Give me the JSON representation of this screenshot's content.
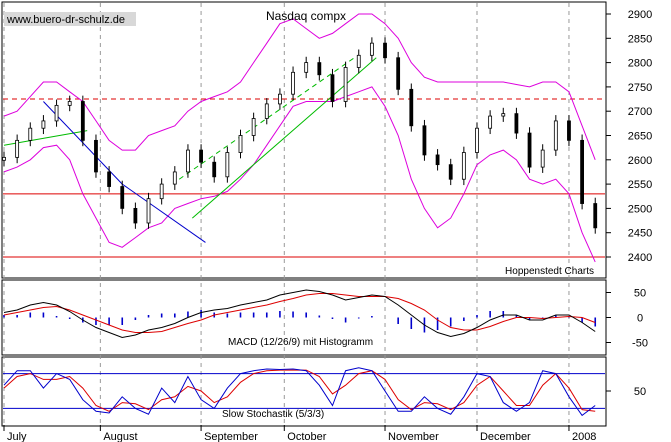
{
  "watermark": "www.buero-dr-schulz.de",
  "credit": "Hoppenstedt Charts",
  "chart_data": [
    {
      "type": "candlestick",
      "title": "Nasdaq compx",
      "ylim": [
        2400,
        2900
      ],
      "y_ticks": [
        2400,
        2450,
        2500,
        2550,
        2600,
        2650,
        2700,
        2750,
        2800,
        2850,
        2900
      ],
      "x_ticks": [
        "July",
        "August",
        "September",
        "October",
        "November",
        "December",
        "2008"
      ],
      "x_tick_days": [
        0,
        22,
        45,
        64,
        87,
        108,
        129
      ],
      "x_range_days": [
        0,
        137
      ],
      "close_days": [
        0,
        3,
        6,
        9,
        12,
        15,
        18,
        21,
        24,
        27,
        30,
        33,
        36,
        39,
        42,
        45,
        48,
        51,
        54,
        57,
        60,
        63,
        66,
        69,
        72,
        75,
        78,
        81,
        84,
        87,
        90,
        93,
        96,
        99,
        102,
        105,
        108,
        111,
        114,
        117,
        120,
        123,
        126,
        129,
        132,
        135
      ],
      "close": [
        2605,
        2640,
        2665,
        2680,
        2712,
        2720,
        2640,
        2575,
        2545,
        2500,
        2470,
        2520,
        2550,
        2575,
        2620,
        2595,
        2565,
        2615,
        2650,
        2685,
        2715,
        2735,
        2780,
        2800,
        2775,
        2720,
        2790,
        2815,
        2840,
        2810,
        2745,
        2670,
        2610,
        2590,
        2560,
        2615,
        2665,
        2690,
        2695,
        2655,
        2585,
        2620,
        2680,
        2640,
        2510,
        2460
      ],
      "bollinger_upper": [
        2690,
        2700,
        2730,
        2760,
        2760,
        2740,
        2720,
        2680,
        2640,
        2620,
        2620,
        2650,
        2660,
        2670,
        2700,
        2720,
        2730,
        2740,
        2760,
        2800,
        2840,
        2880,
        2890,
        2870,
        2850,
        2860,
        2880,
        2900,
        2900,
        2880,
        2850,
        2800,
        2770,
        2760,
        2760,
        2760,
        2760,
        2760,
        2760,
        2755,
        2750,
        2760,
        2760,
        2740,
        2670,
        2600
      ],
      "bollinger_lower": [
        2575,
        2585,
        2600,
        2625,
        2630,
        2600,
        2530,
        2480,
        2430,
        2420,
        2440,
        2460,
        2470,
        2500,
        2510,
        2520,
        2525,
        2535,
        2560,
        2590,
        2630,
        2670,
        2710,
        2720,
        2720,
        2720,
        2730,
        2740,
        2750,
        2710,
        2650,
        2560,
        2500,
        2460,
        2480,
        2530,
        2590,
        2610,
        2620,
        2600,
        2560,
        2550,
        2560,
        2530,
        2450,
        2390
      ],
      "horizontal_lines": [
        {
          "value": 2725,
          "style": "dashed",
          "color": "#dd0000"
        },
        {
          "value": 2530,
          "style": "solid",
          "color": "#dd0000"
        },
        {
          "value": 2400,
          "style": "solid",
          "color": "#dd0000"
        }
      ],
      "trendlines": [
        {
          "from": [
            0,
            2630
          ],
          "to": [
            19,
            2660
          ],
          "color": "#00bb00",
          "style": "solid"
        },
        {
          "from": [
            9,
            2720
          ],
          "to": [
            27,
            2550
          ],
          "color": "#0000cc",
          "style": "solid"
        },
        {
          "from": [
            27,
            2550
          ],
          "to": [
            46,
            2430
          ],
          "color": "#0000cc",
          "style": "solid"
        },
        {
          "from": [
            43,
            2480
          ],
          "to": [
            85,
            2810
          ],
          "color": "#00bb00",
          "style": "solid"
        },
        {
          "from": [
            40,
            2560
          ],
          "to": [
            80,
            2810
          ],
          "color": "#00bb00",
          "style": "dashed"
        }
      ],
      "colors": {
        "candle": "#000000",
        "bollinger": "#dd00dd"
      }
    },
    {
      "type": "line+bar",
      "title": "MACD (12/26/9) mit Histogramm",
      "ylim": [
        -75,
        75
      ],
      "y_ticks": [
        50,
        0,
        -50
      ],
      "macd": [
        10,
        15,
        25,
        30,
        25,
        12,
        -5,
        -20,
        -30,
        -40,
        -35,
        -25,
        -20,
        -12,
        0,
        10,
        15,
        18,
        25,
        30,
        35,
        45,
        50,
        55,
        52,
        45,
        35,
        40,
        45,
        42,
        25,
        5,
        -15,
        -30,
        -38,
        -32,
        -20,
        -5,
        5,
        5,
        -5,
        -5,
        5,
        5,
        -10,
        -28
      ],
      "signal": [
        5,
        10,
        15,
        20,
        22,
        15,
        5,
        -5,
        -15,
        -25,
        -30,
        -30,
        -28,
        -20,
        -12,
        -5,
        5,
        10,
        15,
        20,
        25,
        32,
        38,
        45,
        48,
        48,
        45,
        42,
        42,
        42,
        38,
        28,
        15,
        -5,
        -20,
        -25,
        -25,
        -18,
        -8,
        0,
        0,
        -2,
        0,
        2,
        0,
        -10
      ],
      "histogram": [
        5,
        5,
        10,
        10,
        3,
        -3,
        -10,
        -15,
        -15,
        -15,
        -5,
        5,
        8,
        8,
        12,
        15,
        10,
        8,
        10,
        10,
        10,
        13,
        12,
        10,
        4,
        -3,
        -10,
        -2,
        3,
        0,
        -13,
        -23,
        -30,
        -25,
        -18,
        -7,
        5,
        13,
        13,
        5,
        -5,
        -3,
        5,
        3,
        -10,
        -18
      ],
      "colors": {
        "macd": "#000000",
        "signal": "#dd0000",
        "histogram": "#0000cc"
      }
    },
    {
      "type": "line",
      "title": "Slow Stochastik (5/3/3)",
      "ylim": [
        0,
        100
      ],
      "y_ticks": [
        50
      ],
      "reference_lines": [
        80,
        20
      ],
      "k": [
        60,
        85,
        85,
        55,
        80,
        70,
        35,
        15,
        12,
        40,
        20,
        10,
        55,
        30,
        75,
        35,
        20,
        55,
        80,
        85,
        88,
        87,
        88,
        85,
        60,
        25,
        85,
        90,
        85,
        50,
        15,
        15,
        40,
        20,
        10,
        40,
        80,
        75,
        30,
        15,
        30,
        85,
        80,
        40,
        8,
        25
      ],
      "d": [
        55,
        75,
        80,
        70,
        70,
        75,
        55,
        25,
        15,
        30,
        28,
        18,
        35,
        40,
        58,
        50,
        30,
        40,
        65,
        80,
        85,
        86,
        86,
        86,
        75,
        45,
        60,
        80,
        85,
        70,
        35,
        18,
        30,
        28,
        18,
        30,
        60,
        75,
        50,
        25,
        25,
        60,
        80,
        55,
        18,
        15
      ],
      "colors": {
        "k": "#0000cc",
        "d": "#dd0000",
        "reference": "#0000cc"
      }
    }
  ]
}
